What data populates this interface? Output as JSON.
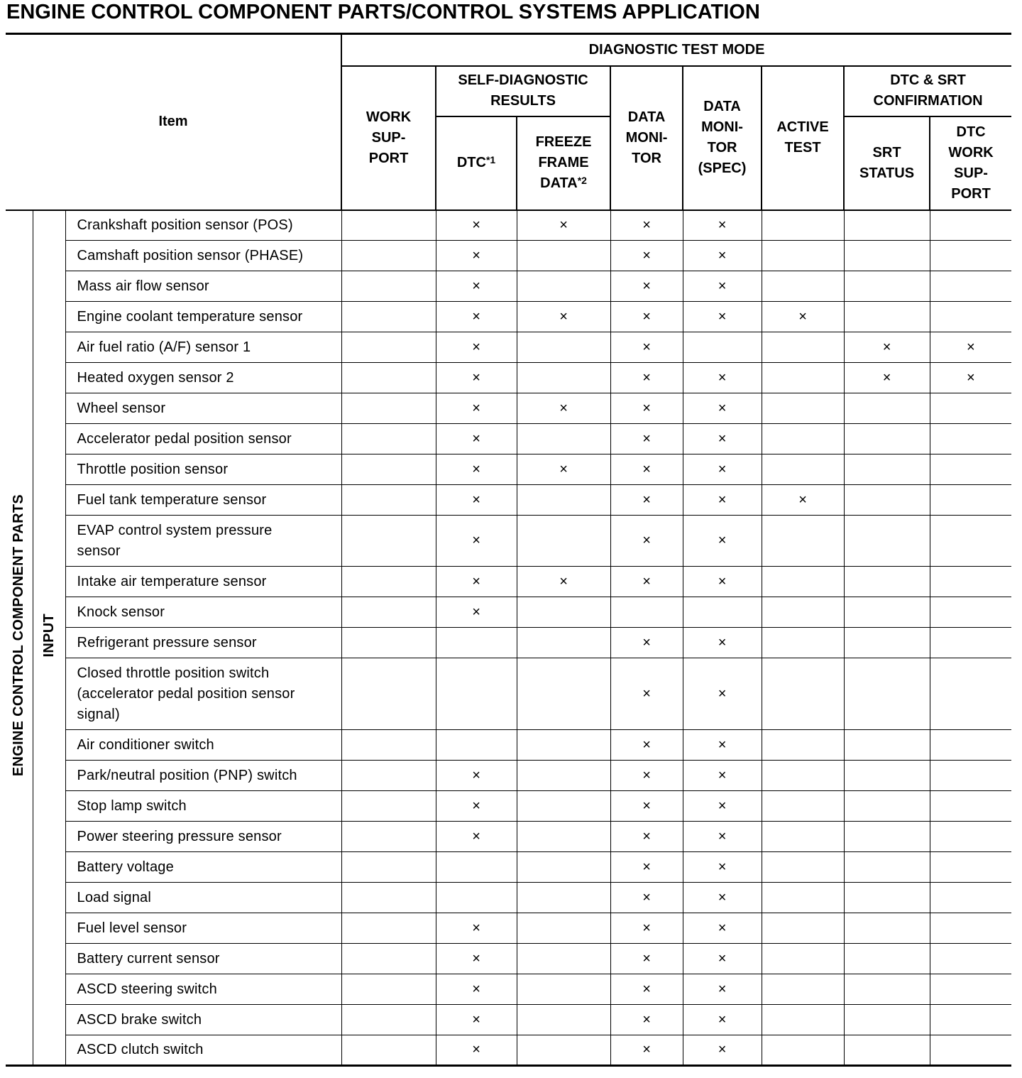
{
  "title": "ENGINE CONTROL COMPONENT PARTS/CONTROL SYSTEMS APPLICATION",
  "header": {
    "item": "Item",
    "diagnostic_test_mode": "DIAGNOSTIC TEST MODE",
    "work_support": "WORK\nSUP-\nPORT",
    "self_diagnostic_results": "SELF-DIAGNOSTIC\nRESULTS",
    "dtc": "DTC",
    "dtc_sup": "*1",
    "freeze_frame_data": "FREEZE\nFRAME\nDATA",
    "freeze_frame_sup": "*2",
    "data_monitor": "DATA\nMONI-\nTOR",
    "data_monitor_spec": "DATA\nMONI-\nTOR\n(SPEC)",
    "active_test": "ACTIVE\nTEST",
    "dtc_srt_confirmation": "DTC & SRT\nCONFIRMATION",
    "srt_status": "SRT\nSTATUS",
    "dtc_work_support": "DTC\nWORK\nSUP-\nPORT"
  },
  "group_label": "ENGINE CONTROL COMPONENT PARTS",
  "subgroup_label": "INPUT",
  "mark_symbol": "×",
  "columns": [
    "work_support",
    "dtc",
    "freeze_frame_data",
    "data_monitor",
    "data_monitor_spec",
    "active_test",
    "srt_status",
    "dtc_work_support"
  ],
  "rows": [
    {
      "item": "Crankshaft position sensor (POS)",
      "marks": [
        0,
        1,
        1,
        1,
        1,
        0,
        0,
        0
      ]
    },
    {
      "item": "Camshaft position sensor (PHASE)",
      "marks": [
        0,
        1,
        0,
        1,
        1,
        0,
        0,
        0
      ]
    },
    {
      "item": "Mass air flow sensor",
      "marks": [
        0,
        1,
        0,
        1,
        1,
        0,
        0,
        0
      ]
    },
    {
      "item": "Engine coolant temperature sensor",
      "marks": [
        0,
        1,
        1,
        1,
        1,
        1,
        0,
        0
      ]
    },
    {
      "item": "Air fuel ratio (A/F) sensor 1",
      "marks": [
        0,
        1,
        0,
        1,
        0,
        0,
        1,
        1
      ]
    },
    {
      "item": "Heated oxygen sensor 2",
      "marks": [
        0,
        1,
        0,
        1,
        1,
        0,
        1,
        1
      ]
    },
    {
      "item": "Wheel sensor",
      "marks": [
        0,
        1,
        1,
        1,
        1,
        0,
        0,
        0
      ]
    },
    {
      "item": "Accelerator pedal position sensor",
      "marks": [
        0,
        1,
        0,
        1,
        1,
        0,
        0,
        0
      ]
    },
    {
      "item": "Throttle position sensor",
      "marks": [
        0,
        1,
        1,
        1,
        1,
        0,
        0,
        0
      ]
    },
    {
      "item": "Fuel tank temperature sensor",
      "marks": [
        0,
        1,
        0,
        1,
        1,
        1,
        0,
        0
      ]
    },
    {
      "item": "EVAP control system pressure\nsensor",
      "marks": [
        0,
        1,
        0,
        1,
        1,
        0,
        0,
        0
      ]
    },
    {
      "item": "Intake air temperature sensor",
      "marks": [
        0,
        1,
        1,
        1,
        1,
        0,
        0,
        0
      ]
    },
    {
      "item": "Knock sensor",
      "marks": [
        0,
        1,
        0,
        0,
        0,
        0,
        0,
        0
      ]
    },
    {
      "item": "Refrigerant pressure sensor",
      "marks": [
        0,
        0,
        0,
        1,
        1,
        0,
        0,
        0
      ]
    },
    {
      "item": "Closed throttle position switch\n(accelerator pedal position sensor\nsignal)",
      "marks": [
        0,
        0,
        0,
        1,
        1,
        0,
        0,
        0
      ]
    },
    {
      "item": "Air conditioner switch",
      "marks": [
        0,
        0,
        0,
        1,
        1,
        0,
        0,
        0
      ]
    },
    {
      "item": "Park/neutral position (PNP) switch",
      "marks": [
        0,
        1,
        0,
        1,
        1,
        0,
        0,
        0
      ]
    },
    {
      "item": "Stop lamp switch",
      "marks": [
        0,
        1,
        0,
        1,
        1,
        0,
        0,
        0
      ]
    },
    {
      "item": "Power steering pressure sensor",
      "marks": [
        0,
        1,
        0,
        1,
        1,
        0,
        0,
        0
      ]
    },
    {
      "item": "Battery voltage",
      "marks": [
        0,
        0,
        0,
        1,
        1,
        0,
        0,
        0
      ]
    },
    {
      "item": "Load signal",
      "marks": [
        0,
        0,
        0,
        1,
        1,
        0,
        0,
        0
      ]
    },
    {
      "item": "Fuel level sensor",
      "marks": [
        0,
        1,
        0,
        1,
        1,
        0,
        0,
        0
      ]
    },
    {
      "item": "Battery current sensor",
      "marks": [
        0,
        1,
        0,
        1,
        1,
        0,
        0,
        0
      ]
    },
    {
      "item": "ASCD steering switch",
      "marks": [
        0,
        1,
        0,
        1,
        1,
        0,
        0,
        0
      ]
    },
    {
      "item": "ASCD brake switch",
      "marks": [
        0,
        1,
        0,
        1,
        1,
        0,
        0,
        0
      ]
    },
    {
      "item": "ASCD clutch switch",
      "marks": [
        0,
        1,
        0,
        1,
        1,
        0,
        0,
        0
      ]
    }
  ]
}
